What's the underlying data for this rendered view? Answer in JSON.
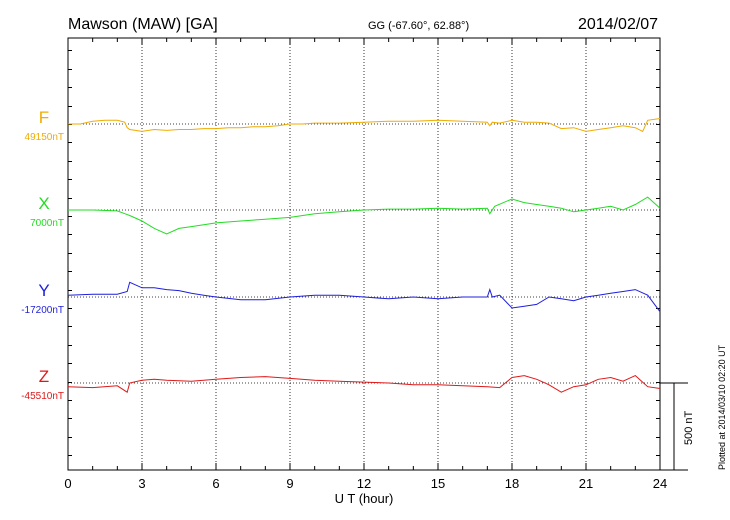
{
  "header": {
    "station": "Mawson (MAW)  [GA]",
    "coords": "GG (-67.60°,  62.88°)",
    "date": "2014/02/07"
  },
  "side_note": "Plotted at 2014/03/10 02:20 UT",
  "chart_data": {
    "type": "line",
    "title": "Mawson (MAW)  [GA]",
    "xlabel": "U T (hour)",
    "xlim": [
      0,
      24
    ],
    "x_ticks": [
      0,
      3,
      6,
      9,
      12,
      15,
      18,
      21,
      24
    ],
    "scale_label": "500 nT",
    "grid": true,
    "series": [
      {
        "name": "F",
        "baseline_label": "49150nT",
        "color": "#f0ac00",
        "x": [
          0,
          0.5,
          1,
          1.5,
          2,
          2.3,
          2.4,
          2.5,
          3,
          3.5,
          4,
          4.5,
          5,
          5.5,
          6,
          6.5,
          7,
          7.5,
          8,
          8.5,
          9,
          9.5,
          10,
          11,
          12,
          13,
          14,
          15,
          16,
          17,
          17.1,
          17.2,
          17.5,
          18,
          18.5,
          19,
          19.5,
          20,
          20.5,
          21,
          21.5,
          22,
          22.5,
          23,
          23.3,
          23.5,
          24
        ],
        "values": [
          0,
          0,
          15,
          20,
          20,
          10,
          -20,
          -30,
          -40,
          -30,
          -35,
          -30,
          -30,
          -25,
          -25,
          -20,
          -20,
          -15,
          -15,
          -10,
          0,
          0,
          5,
          5,
          10,
          15,
          15,
          20,
          15,
          10,
          -10,
          10,
          5,
          20,
          10,
          10,
          5,
          -25,
          -20,
          -40,
          -30,
          -20,
          -10,
          -20,
          -40,
          20,
          30
        ]
      },
      {
        "name": "X",
        "baseline_label": "7000nT",
        "color": "#22dd22",
        "x": [
          0,
          1,
          2,
          2.5,
          3,
          3.5,
          4,
          4.5,
          5,
          5.5,
          6,
          7,
          8,
          9,
          10,
          11,
          12,
          13,
          14,
          15,
          16,
          17,
          17.1,
          17.3,
          18,
          18.5,
          19,
          19.5,
          20,
          20.5,
          21,
          21.5,
          22,
          22.5,
          23,
          23.5,
          24
        ],
        "values": [
          0,
          0,
          -5,
          -30,
          -60,
          -100,
          -130,
          -100,
          -90,
          -80,
          -70,
          -60,
          -50,
          -40,
          -20,
          -10,
          0,
          5,
          5,
          10,
          5,
          10,
          -20,
          20,
          60,
          40,
          30,
          20,
          10,
          -10,
          0,
          10,
          20,
          0,
          30,
          70,
          10
        ]
      },
      {
        "name": "Y",
        "baseline_label": "-17200nT",
        "color": "#1f1fdd",
        "x": [
          0,
          1,
          2,
          2.4,
          2.5,
          3,
          3.5,
          4,
          4.5,
          5,
          5.5,
          6,
          7,
          8,
          9,
          10,
          11,
          12,
          13,
          14,
          15,
          16,
          17,
          17.1,
          17.2,
          17.5,
          18,
          18.5,
          19,
          19.5,
          20,
          20.5,
          21,
          21.5,
          22,
          22.5,
          23,
          23.5,
          24
        ],
        "values": [
          10,
          15,
          15,
          30,
          80,
          50,
          50,
          40,
          35,
          20,
          10,
          0,
          -15,
          -15,
          0,
          10,
          10,
          0,
          -10,
          0,
          -10,
          0,
          0,
          40,
          0,
          10,
          -60,
          -50,
          -40,
          0,
          -10,
          -20,
          0,
          10,
          20,
          30,
          40,
          10,
          -80
        ]
      },
      {
        "name": "Z",
        "baseline_label": "-45510nT",
        "color": "#e01818",
        "x": [
          0,
          1,
          2,
          2.4,
          2.5,
          3,
          3.5,
          4,
          5,
          6,
          7,
          8,
          9,
          10,
          11,
          12,
          13,
          14,
          15,
          16,
          17,
          17.5,
          18,
          18.5,
          19,
          19.5,
          20,
          20.5,
          21,
          21.5,
          22,
          22.5,
          23,
          23.5,
          24
        ],
        "values": [
          -20,
          -25,
          -15,
          -50,
          0,
          15,
          20,
          15,
          10,
          20,
          30,
          35,
          25,
          15,
          10,
          5,
          0,
          -10,
          -10,
          -15,
          -20,
          -25,
          30,
          40,
          20,
          -10,
          -50,
          -20,
          -10,
          20,
          30,
          10,
          40,
          -20,
          -30
        ]
      }
    ]
  }
}
